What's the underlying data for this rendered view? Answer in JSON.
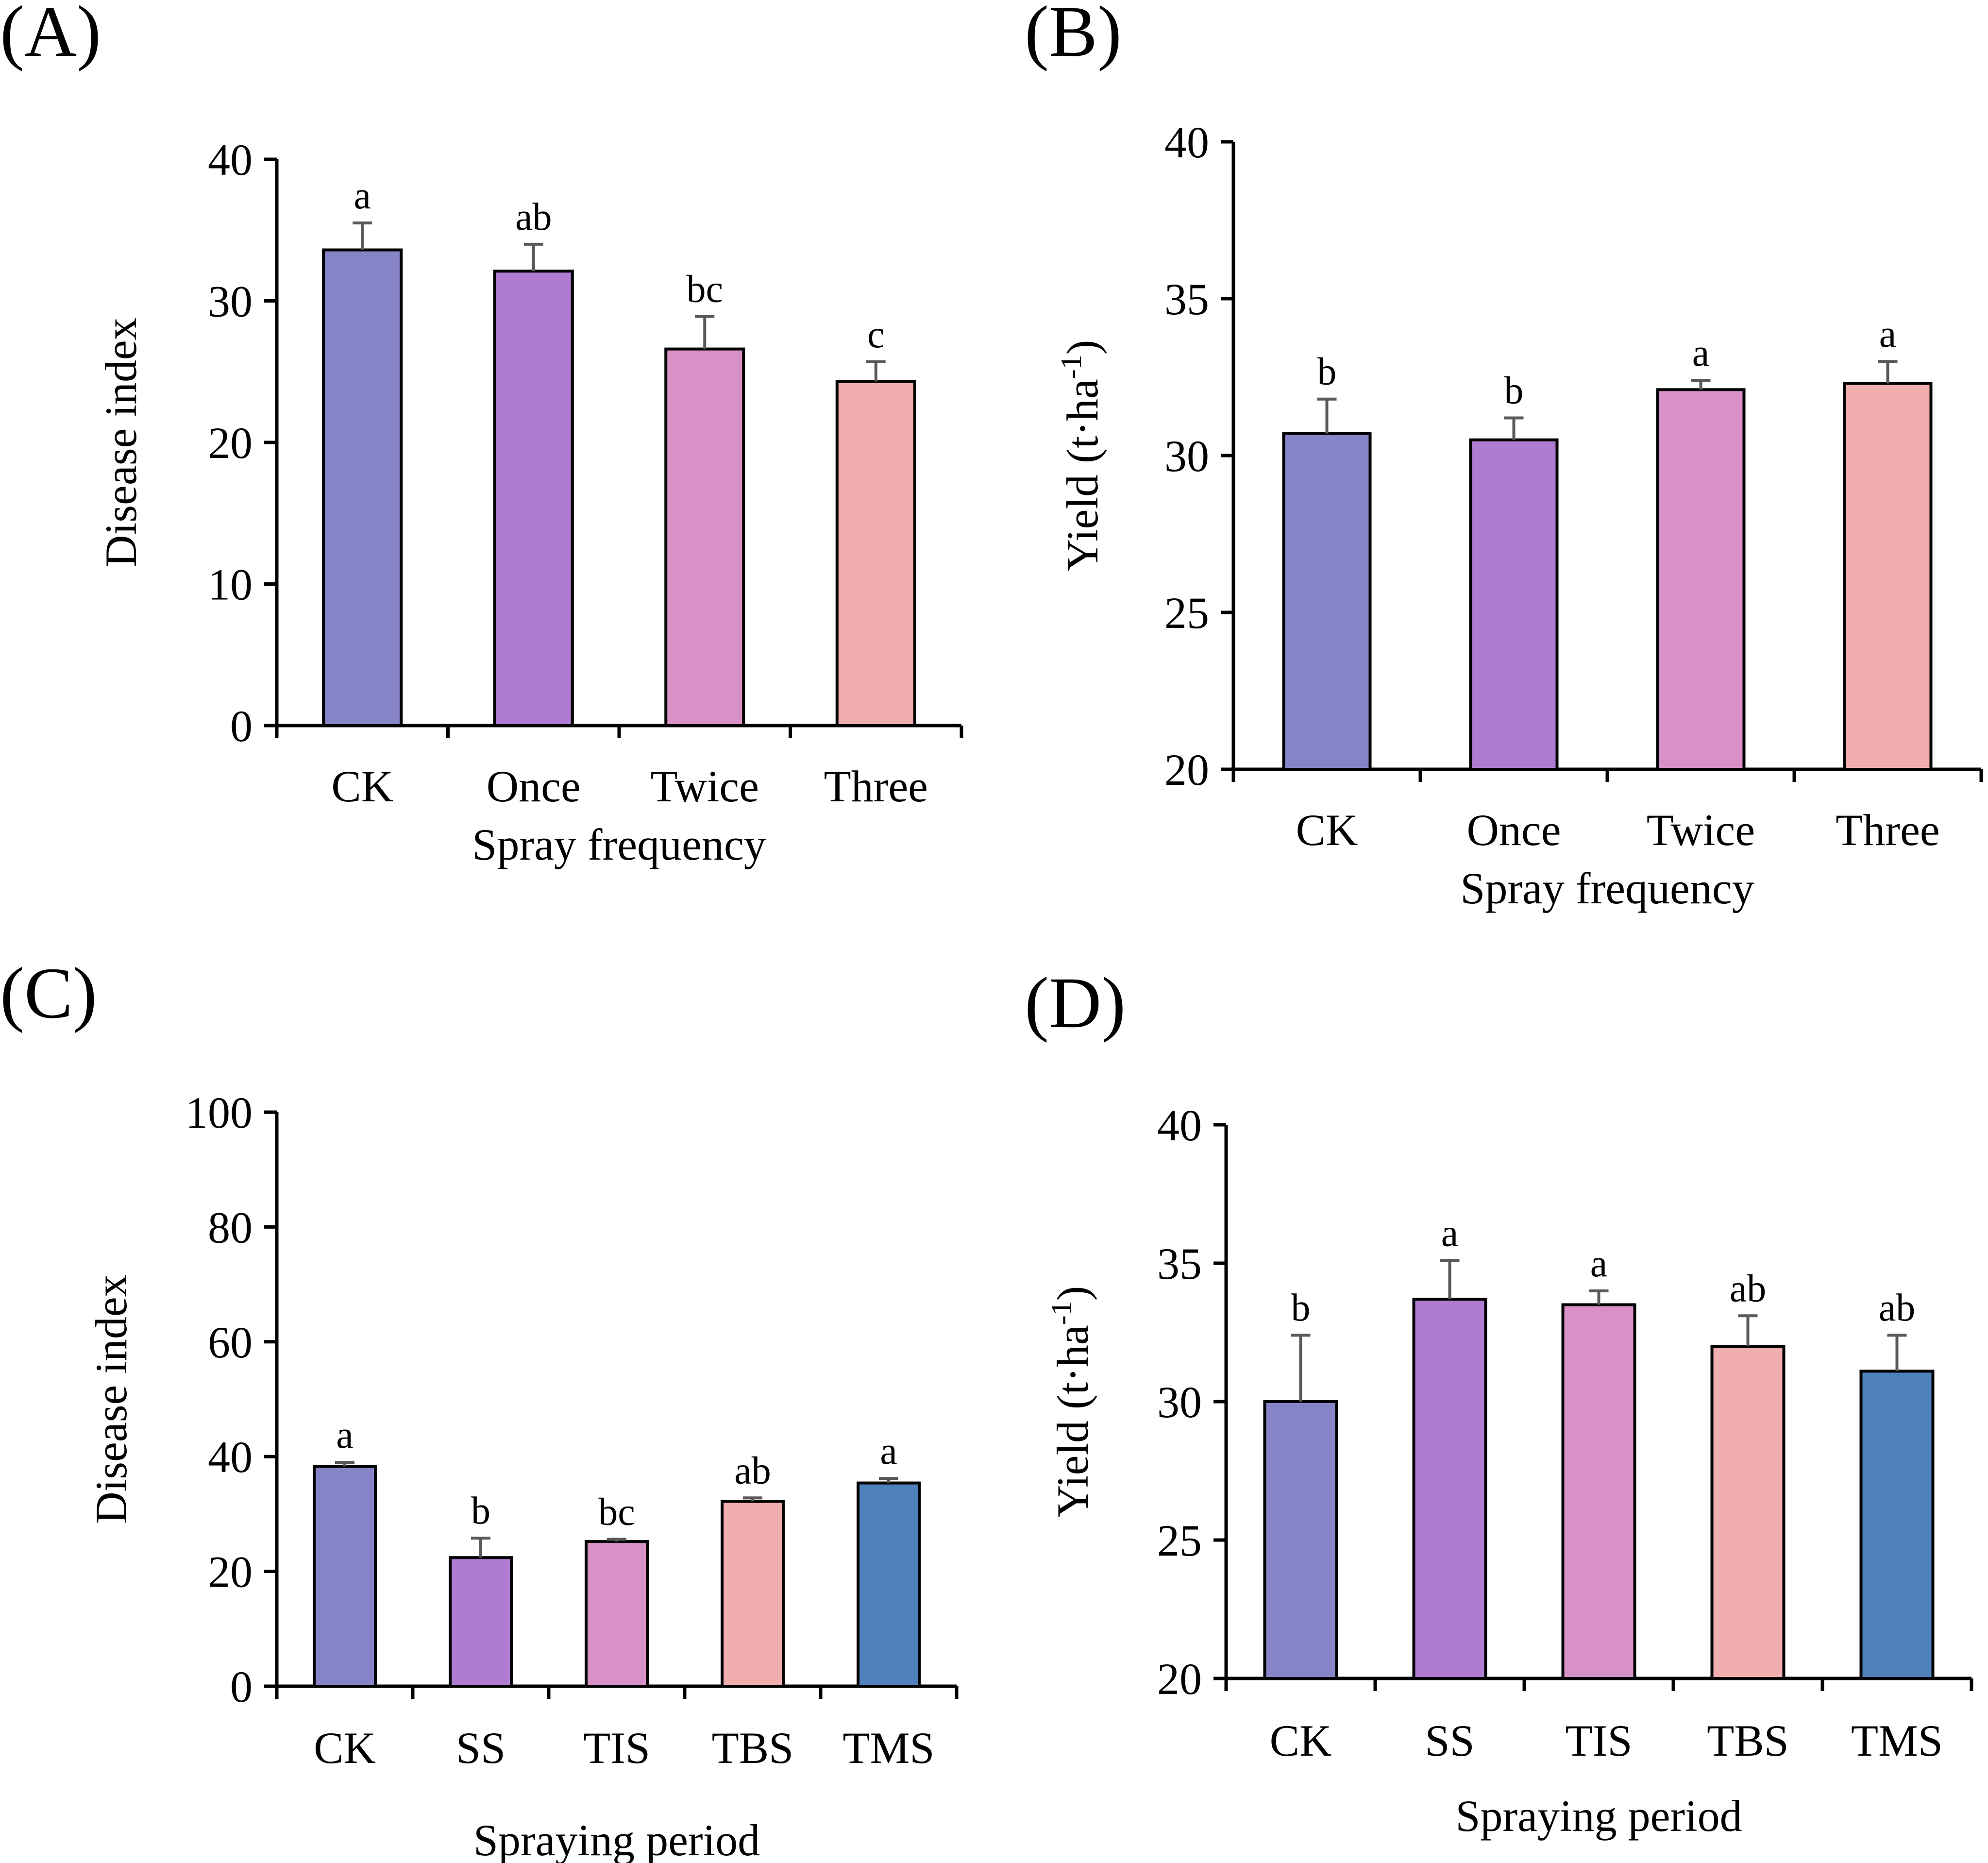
{
  "chart_data": [
    {
      "id": "A",
      "panel_label": "(A)",
      "type": "bar",
      "xlabel": "Spray frequency",
      "ylabel": "Disease index",
      "ylabel_super": "",
      "ylabel_suffix": "",
      "ylim": [
        0,
        40
      ],
      "yticks": [
        0,
        10,
        20,
        30,
        40
      ],
      "grid": false,
      "categories": [
        "CK",
        "Once",
        "Twice",
        "Three"
      ],
      "values": [
        33.6,
        32.1,
        26.6,
        24.3
      ],
      "errors": [
        1.9,
        1.9,
        2.3,
        1.4
      ],
      "significance": [
        "a",
        "ab",
        "bc",
        "c"
      ],
      "colors": [
        "#8683C6",
        "#B07BD2",
        "#D891C7",
        "#F0AEAE"
      ]
    },
    {
      "id": "B",
      "panel_label": "(B)",
      "type": "bar",
      "xlabel": "Spray frequency",
      "ylabel": "Yield (t·ha",
      "ylabel_super": "-1",
      "ylabel_suffix": ")",
      "ylim": [
        20,
        40
      ],
      "yticks": [
        20,
        25,
        30,
        35,
        40
      ],
      "grid": false,
      "categories": [
        "CK",
        "Once",
        "Twice",
        "Three"
      ],
      "values": [
        30.7,
        30.5,
        32.1,
        32.3
      ],
      "errors": [
        1.1,
        0.7,
        0.3,
        0.7
      ],
      "significance": [
        "b",
        "b",
        "a",
        "a"
      ],
      "colors": [
        "#8683C6",
        "#B07BD2",
        "#D891C7",
        "#F0AEAE"
      ]
    },
    {
      "id": "C",
      "panel_label": "(C)",
      "type": "bar",
      "xlabel": "Spraying period",
      "ylabel": "Disease index",
      "ylabel_super": "",
      "ylabel_suffix": "",
      "ylim": [
        0,
        100
      ],
      "yticks": [
        0,
        20,
        40,
        60,
        80,
        100
      ],
      "grid": false,
      "categories": [
        "CK",
        "SS",
        "TIS",
        "TBS",
        "TMS"
      ],
      "values": [
        38.3,
        22.4,
        25.2,
        32.2,
        35.4
      ],
      "errors": [
        0.7,
        3.4,
        0.4,
        0.6,
        0.8
      ],
      "significance": [
        "a",
        "b",
        "bc",
        "ab",
        "a"
      ],
      "colors": [
        "#8683C6",
        "#B07BD2",
        "#D891C7",
        "#F0AEAE",
        "#4F81BD"
      ]
    },
    {
      "id": "D",
      "panel_label": "(D)",
      "type": "bar",
      "xlabel": "Spraying period",
      "ylabel": "Yield (t·ha",
      "ylabel_super": "-1",
      "ylabel_suffix": ")",
      "ylim": [
        20,
        40
      ],
      "yticks": [
        20,
        25,
        30,
        35,
        40
      ],
      "grid": false,
      "categories": [
        "CK",
        "SS",
        "TIS",
        "TBS",
        "TMS"
      ],
      "values": [
        30.0,
        33.7,
        33.5,
        32.0,
        31.1
      ],
      "errors": [
        2.4,
        1.4,
        0.5,
        1.1,
        1.3
      ],
      "significance": [
        "b",
        "a",
        "a",
        "ab",
        "ab"
      ],
      "colors": [
        "#8683C6",
        "#B07BD2",
        "#D891C7",
        "#F0AEAE",
        "#4F81BD"
      ]
    }
  ]
}
